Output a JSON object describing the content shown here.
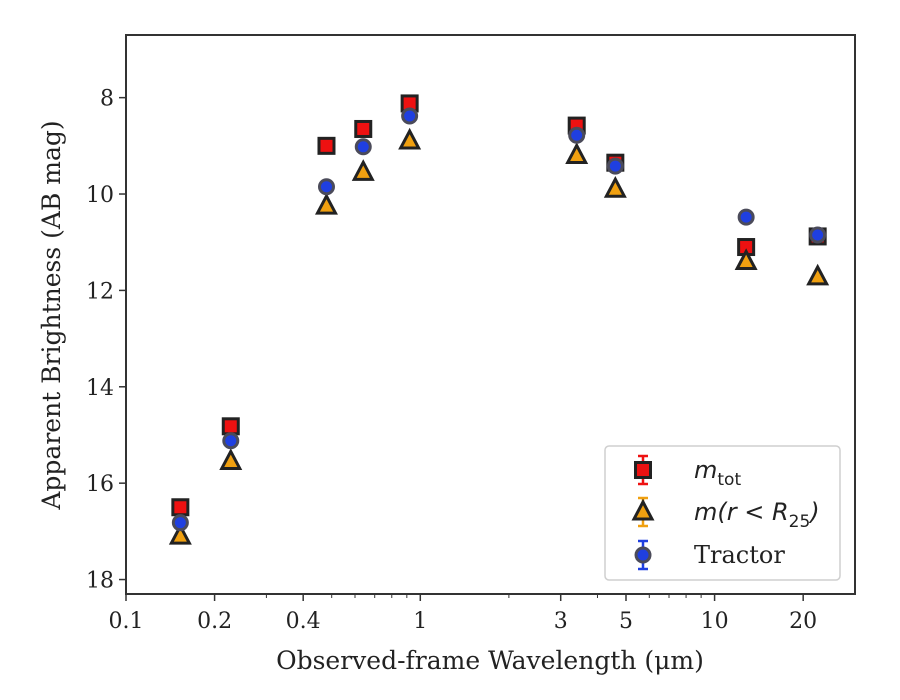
{
  "chart_data": {
    "type": "scatter",
    "title": "",
    "xlabel": "Observed-frame Wavelength (μm)",
    "ylabel": "Apparent Brightness (AB mag)",
    "xscale": "log",
    "xlim": [
      0.1,
      30
    ],
    "ylim": [
      18.3,
      6.7
    ],
    "y_inverted": true,
    "x_ticks": [
      0.1,
      0.2,
      0.4,
      1,
      3,
      5,
      10,
      20
    ],
    "x_tick_labels": [
      "0.1",
      "0.2",
      "0.4",
      "1",
      "3",
      "5",
      "10",
      "20"
    ],
    "y_ticks": [
      8,
      10,
      12,
      14,
      16,
      18
    ],
    "y_tick_labels": [
      "8",
      "10",
      "12",
      "14",
      "16",
      "18"
    ],
    "grid": false,
    "legend_position": "lower-right",
    "series": [
      {
        "name": "m_tot",
        "label_display": "m",
        "label_sub": "tot",
        "marker": "square",
        "color": "#ee1111",
        "x": [
          0.153,
          0.227,
          0.48,
          0.64,
          0.92,
          3.4,
          4.6,
          12.8,
          22.4
        ],
        "y": [
          16.5,
          14.82,
          9.0,
          8.65,
          8.12,
          8.58,
          9.35,
          11.1,
          10.88
        ]
      },
      {
        "name": "m(r < R_25)",
        "label_display": "m(r < R",
        "label_sub": "25",
        "label_end": ")",
        "marker": "triangle",
        "color": "#f0a010",
        "x": [
          0.153,
          0.227,
          0.48,
          0.64,
          0.92,
          3.4,
          4.6,
          12.8,
          22.4
        ],
        "y": [
          17.1,
          15.55,
          10.25,
          9.55,
          8.9,
          9.2,
          9.9,
          11.4,
          11.72
        ]
      },
      {
        "name": "Tractor",
        "label_display": "Tractor",
        "marker": "circle",
        "color": "#1f3fe0",
        "x": [
          0.153,
          0.227,
          0.48,
          0.64,
          0.92,
          3.4,
          4.6,
          12.8,
          22.4
        ],
        "y": [
          16.82,
          15.12,
          9.85,
          9.02,
          8.38,
          8.78,
          9.42,
          10.48,
          10.85
        ]
      }
    ]
  }
}
